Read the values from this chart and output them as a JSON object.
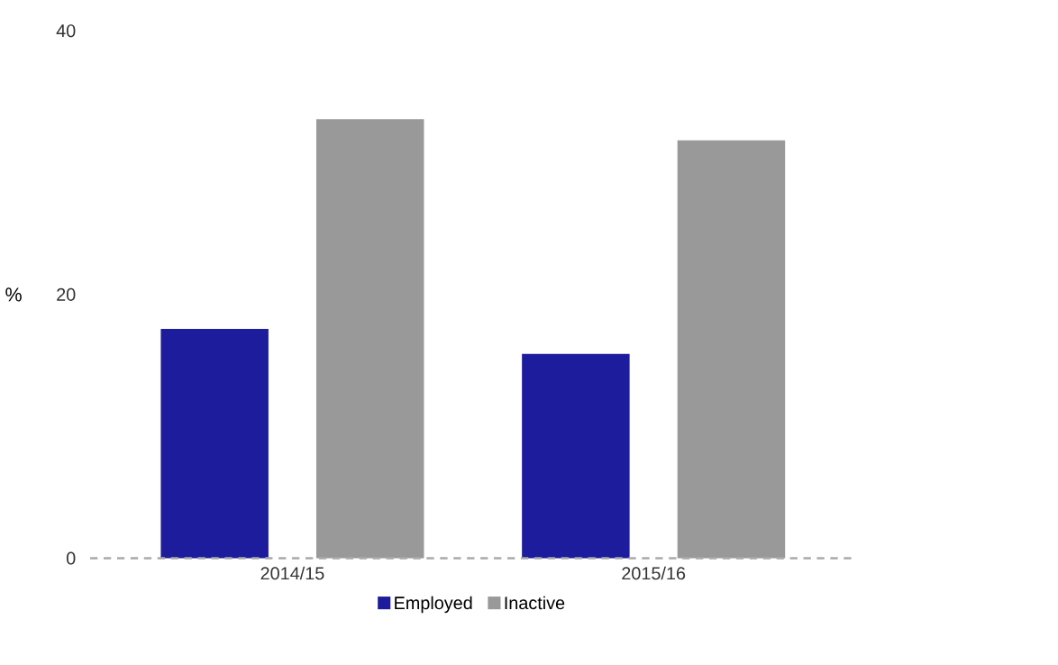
{
  "chart_data": {
    "type": "bar",
    "ylabel": "%",
    "categories": [
      "2014/15",
      "2015/16"
    ],
    "series": [
      {
        "name": "Employed",
        "color": "#1c1c9c",
        "values": [
          17.4,
          15.5
        ]
      },
      {
        "name": "Inactive",
        "color": "#999999",
        "values": [
          33.3,
          31.7
        ]
      }
    ],
    "ylim": [
      0,
      40
    ],
    "yticks": [
      0,
      20,
      40
    ],
    "legend": "bottom",
    "grid": false,
    "ref_lines": [
      {
        "axis": "y",
        "value": 0,
        "line_style": "dashed",
        "color": "#aaaaaa"
      }
    ]
  }
}
